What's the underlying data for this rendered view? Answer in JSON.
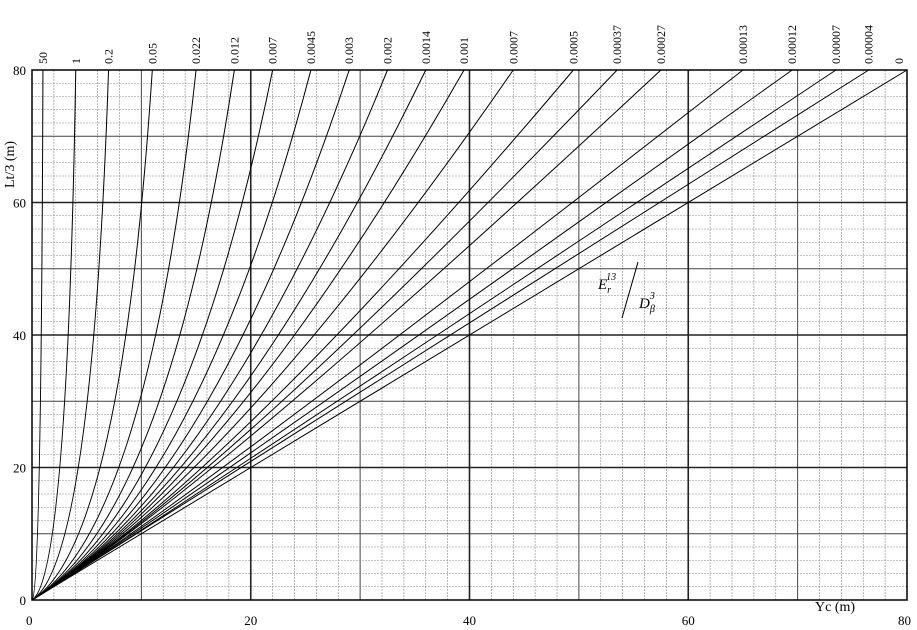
{
  "chart_data": {
    "type": "line",
    "title": "",
    "xlabel": "Yc (m)",
    "ylabel": "Lt/3 (m)",
    "xlim": [
      0,
      80
    ],
    "ylim": [
      0,
      80
    ],
    "xticks": [
      "0",
      "20",
      "40",
      "60",
      "80"
    ],
    "yticks": [
      "0",
      "20",
      "40",
      "60",
      "80"
    ],
    "grid": true,
    "annotation": {
      "numerator": "E",
      "numerator_sub": "r",
      "numerator_sup": "13",
      "denominator": "D",
      "denominator_sub": "β",
      "denominator_sup": "3"
    },
    "series": [
      {
        "name": "50",
        "x_end": 1.0
      },
      {
        "name": "1",
        "x_end": 4.0
      },
      {
        "name": "0.2",
        "x_end": 7.0
      },
      {
        "name": "0.05",
        "x_end": 11.0
      },
      {
        "name": "0.022",
        "x_end": 15.0
      },
      {
        "name": "0.012",
        "x_end": 18.5
      },
      {
        "name": "0.007",
        "x_end": 22.0
      },
      {
        "name": "0.0045",
        "x_end": 25.5
      },
      {
        "name": "0.003",
        "x_end": 29.0
      },
      {
        "name": "0.002",
        "x_end": 32.5
      },
      {
        "name": "0.0014",
        "x_end": 36.0
      },
      {
        "name": "0.001",
        "x_end": 39.5
      },
      {
        "name": "0.0007",
        "x_end": 44.0
      },
      {
        "name": "0.0005",
        "x_end": 49.5
      },
      {
        "name": "0.00037",
        "x_end": 53.5
      },
      {
        "name": "0.00027",
        "x_end": 57.5
      },
      {
        "name": "0.00013",
        "x_end": 65.0
      },
      {
        "name": "0.00012",
        "x_end": 69.5
      },
      {
        "name": "0.00007",
        "x_end": 73.5
      },
      {
        "name": "0.00004",
        "x_end": 76.5
      },
      {
        "name": "0",
        "x_end": 80.0
      }
    ]
  }
}
